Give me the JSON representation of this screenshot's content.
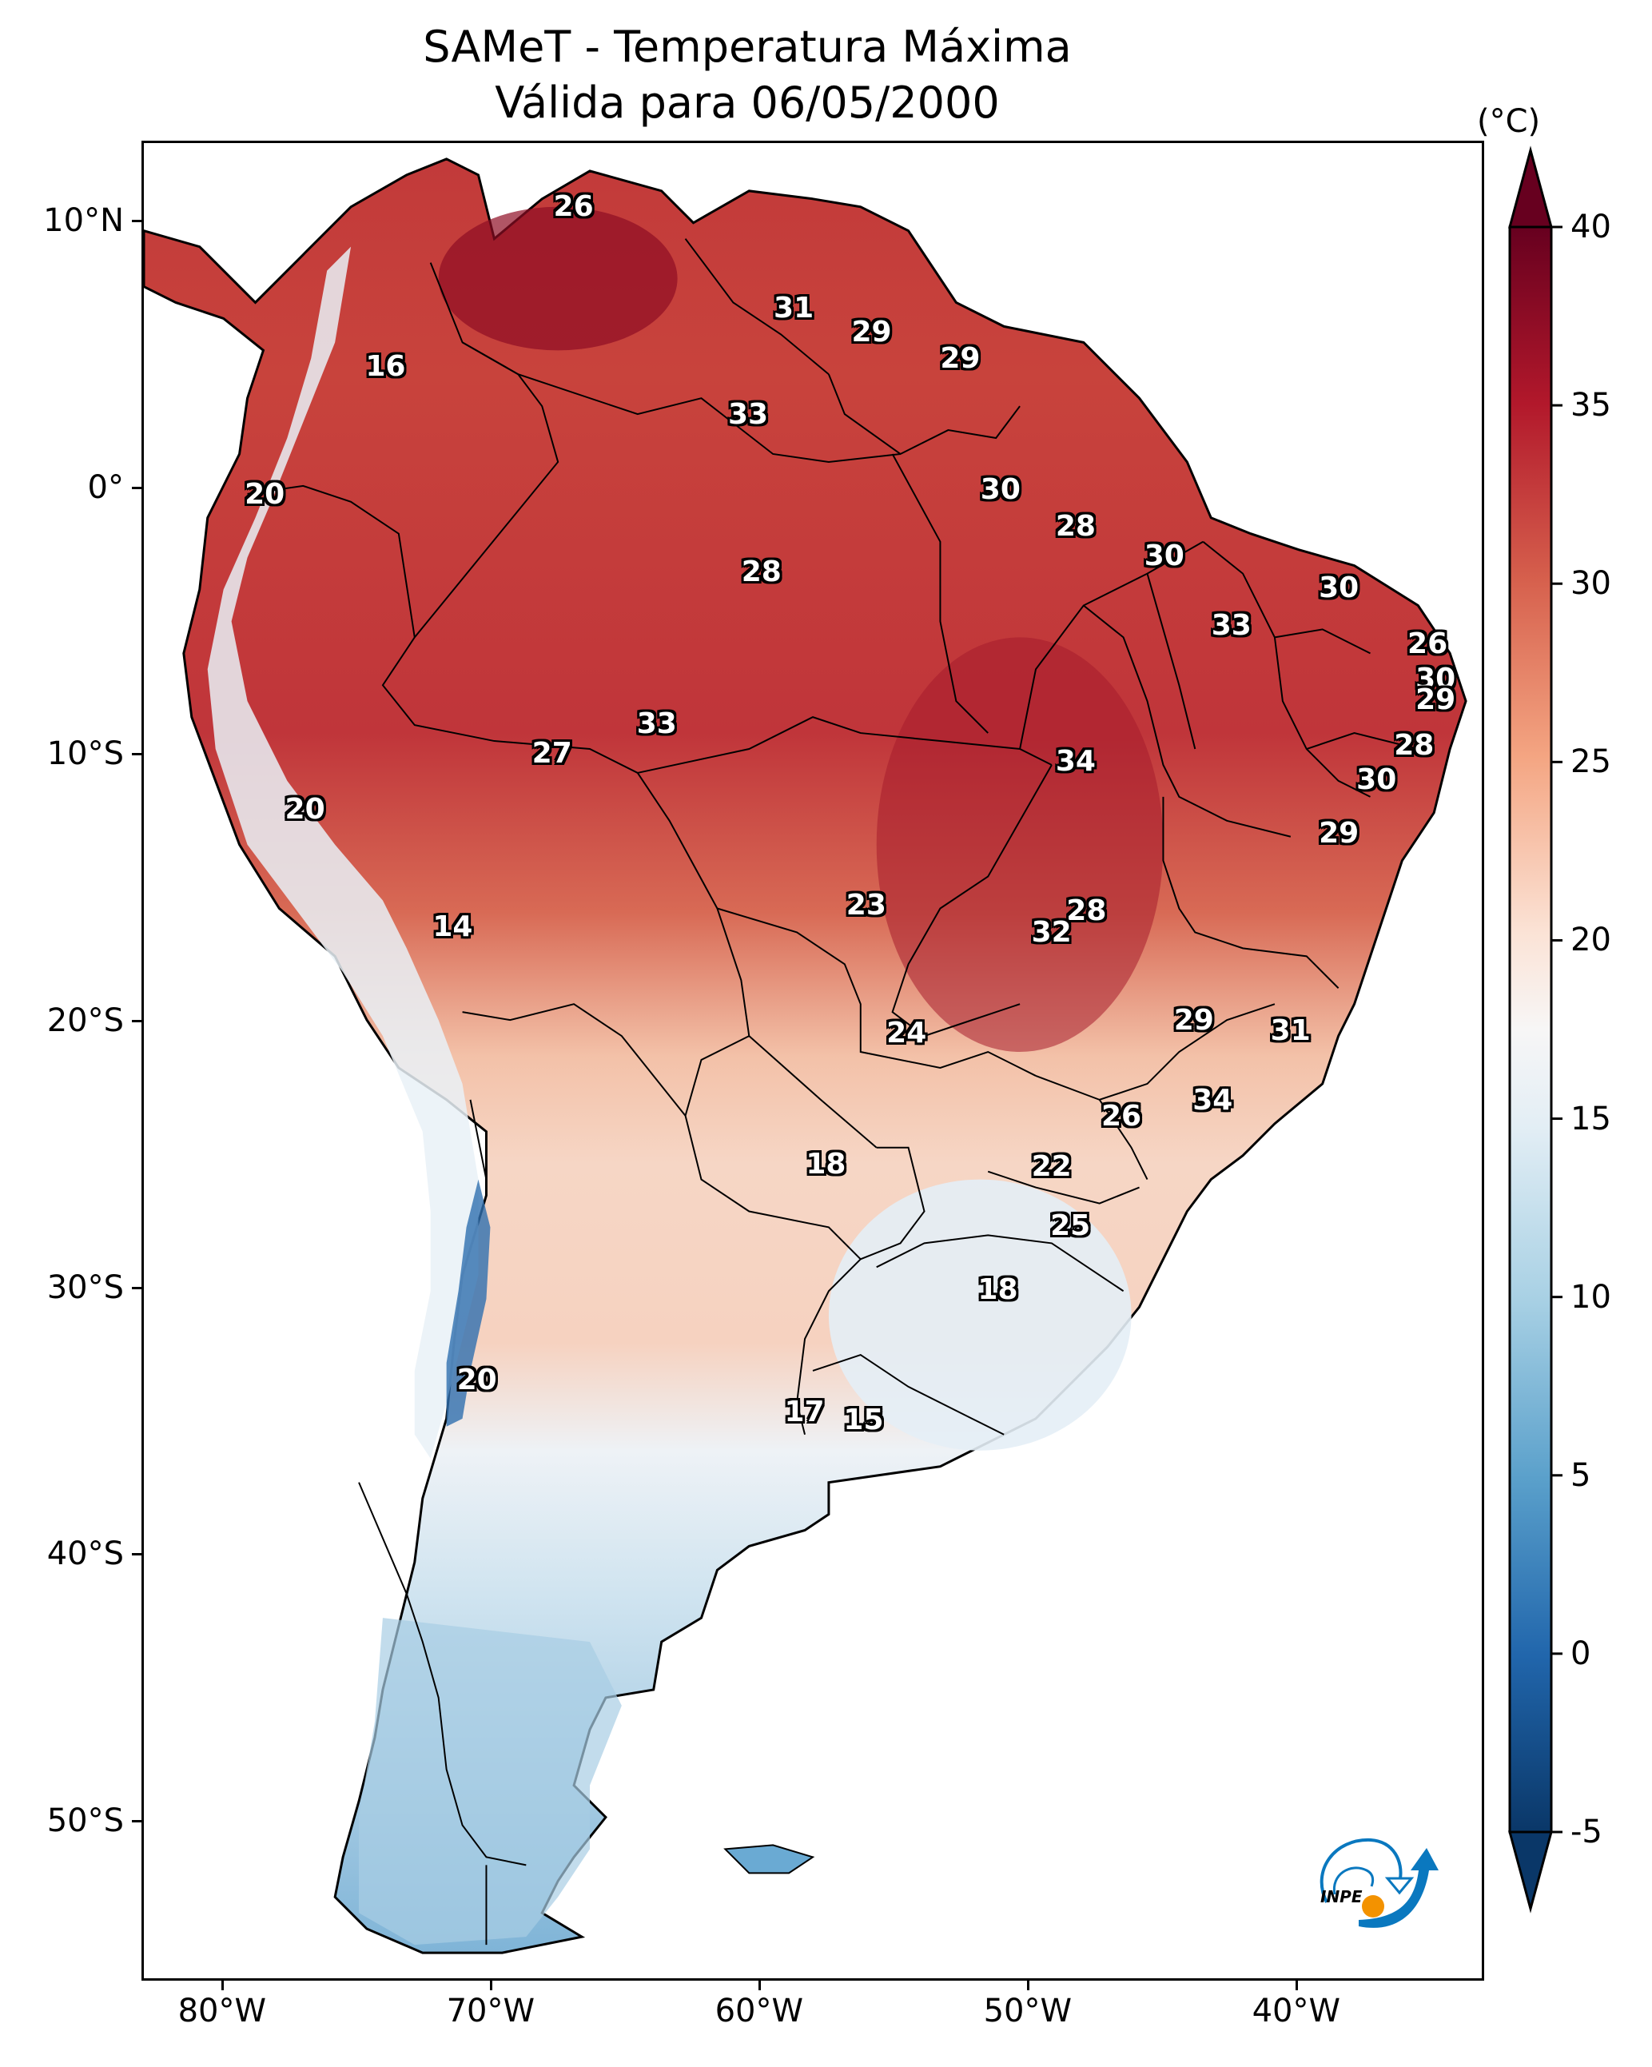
{
  "title": {
    "line1": "SAMeT - Temperatura Máxima",
    "line2": "Válida para 06/05/2000"
  },
  "chart_data": {
    "type": "heatmap",
    "title": "SAMeT - Temperatura Máxima",
    "subtitle": "Válida para 06/05/2000",
    "xlabel": "",
    "ylabel": "",
    "xlim": [
      -83,
      -33
    ],
    "ylim": [
      -56,
      13
    ],
    "x_ticks": [
      {
        "value": -80,
        "label": "80°W"
      },
      {
        "value": -70,
        "label": "70°W"
      },
      {
        "value": -60,
        "label": "60°W"
      },
      {
        "value": -50,
        "label": "50°W"
      },
      {
        "value": -40,
        "label": "40°W"
      }
    ],
    "y_ticks": [
      {
        "value": 10,
        "label": "10°N"
      },
      {
        "value": 0,
        "label": "0°"
      },
      {
        "value": -10,
        "label": "10°S"
      },
      {
        "value": -20,
        "label": "20°S"
      },
      {
        "value": -30,
        "label": "30°S"
      },
      {
        "value": -40,
        "label": "40°S"
      },
      {
        "value": -50,
        "label": "50°S"
      }
    ],
    "colorbar": {
      "unit": "(°C)",
      "colormap": "RdBu_r",
      "range": [
        -5,
        40
      ],
      "extend": "both",
      "ticks": [
        -5,
        0,
        5,
        10,
        15,
        20,
        25,
        30,
        35,
        40
      ],
      "tick_labels": [
        "-5",
        "0",
        "5",
        "10",
        "15",
        "20",
        "25",
        "30",
        "35",
        "40"
      ],
      "colors": {
        "-5": "#0a3768",
        "0": "#2166ac",
        "5": "#5aa0cb",
        "10": "#a7d0e4",
        "15": "#e3eef5",
        "17.5": "#f7f6f6",
        "20": "#fbe3d6",
        "25": "#f4a582",
        "30": "#d6604d",
        "35": "#b2182b",
        "40": "#67001f"
      }
    },
    "station_labels": [
      {
        "lon": -67.0,
        "lat": 10.6,
        "value": "26"
      },
      {
        "lon": -74.0,
        "lat": 4.6,
        "value": "16"
      },
      {
        "lon": -78.5,
        "lat": -0.2,
        "value": "20"
      },
      {
        "lon": -58.8,
        "lat": 6.8,
        "value": "31"
      },
      {
        "lon": -55.9,
        "lat": 5.9,
        "value": "29"
      },
      {
        "lon": -52.6,
        "lat": 4.9,
        "value": "29"
      },
      {
        "lon": -60.5,
        "lat": 2.8,
        "value": "33"
      },
      {
        "lon": -51.1,
        "lat": 0.0,
        "value": "30"
      },
      {
        "lon": -48.3,
        "lat": -1.4,
        "value": "28"
      },
      {
        "lon": -60.0,
        "lat": -3.1,
        "value": "28"
      },
      {
        "lon": -45.0,
        "lat": -2.5,
        "value": "30"
      },
      {
        "lon": -42.5,
        "lat": -5.1,
        "value": "33"
      },
      {
        "lon": -38.5,
        "lat": -3.7,
        "value": "30"
      },
      {
        "lon": -35.2,
        "lat": -5.8,
        "value": "26"
      },
      {
        "lon": -34.9,
        "lat": -7.1,
        "value": "30"
      },
      {
        "lon": -34.9,
        "lat": -7.9,
        "value": "29"
      },
      {
        "lon": -35.7,
        "lat": -9.6,
        "value": "28"
      },
      {
        "lon": -37.1,
        "lat": -10.9,
        "value": "30"
      },
      {
        "lon": -38.5,
        "lat": -12.9,
        "value": "29"
      },
      {
        "lon": -63.9,
        "lat": -8.8,
        "value": "33"
      },
      {
        "lon": -67.8,
        "lat": -9.9,
        "value": "27"
      },
      {
        "lon": -48.3,
        "lat": -10.2,
        "value": "34"
      },
      {
        "lon": -77.0,
        "lat": -12.0,
        "value": "20"
      },
      {
        "lon": -71.5,
        "lat": -16.4,
        "value": "14"
      },
      {
        "lon": -56.1,
        "lat": -15.6,
        "value": "23"
      },
      {
        "lon": -47.9,
        "lat": -15.8,
        "value": "28"
      },
      {
        "lon": -49.2,
        "lat": -16.6,
        "value": "32"
      },
      {
        "lon": -54.6,
        "lat": -20.4,
        "value": "24"
      },
      {
        "lon": -43.9,
        "lat": -19.9,
        "value": "29"
      },
      {
        "lon": -40.3,
        "lat": -20.3,
        "value": "31"
      },
      {
        "lon": -43.2,
        "lat": -22.9,
        "value": "34"
      },
      {
        "lon": -46.6,
        "lat": -23.5,
        "value": "26"
      },
      {
        "lon": -57.6,
        "lat": -25.3,
        "value": "18"
      },
      {
        "lon": -49.2,
        "lat": -25.4,
        "value": "22"
      },
      {
        "lon": -48.5,
        "lat": -27.6,
        "value": "25"
      },
      {
        "lon": -51.2,
        "lat": -30.0,
        "value": "18"
      },
      {
        "lon": -70.6,
        "lat": -33.4,
        "value": "20"
      },
      {
        "lon": -58.4,
        "lat": -34.6,
        "value": "17"
      },
      {
        "lon": -56.2,
        "lat": -34.9,
        "value": "15"
      }
    ]
  },
  "logo": {
    "text": "INPE",
    "colors": {
      "blue": "#0a78bf",
      "orange": "#f39200"
    }
  }
}
